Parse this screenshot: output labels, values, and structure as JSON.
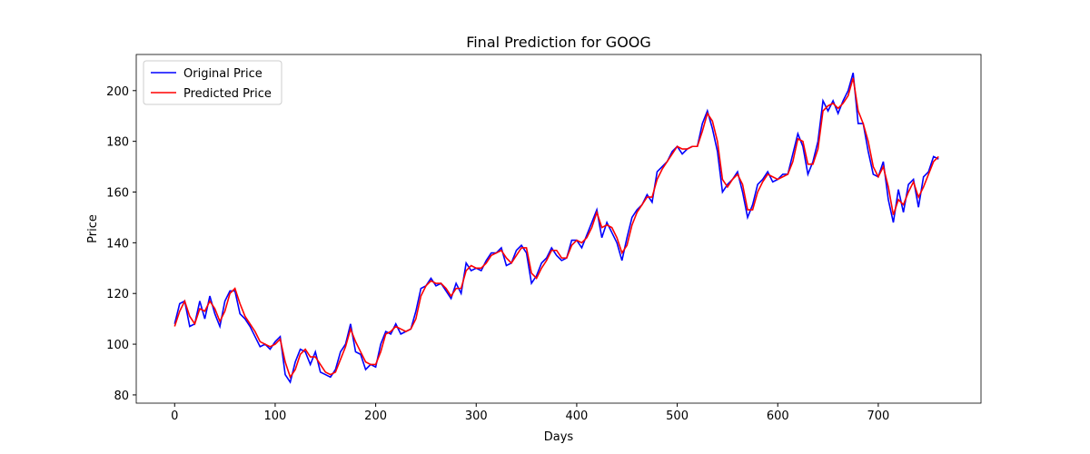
{
  "chart_data": {
    "type": "line",
    "title": "Final Prediction for GOOG",
    "x_label": "Days",
    "y_label": "Price",
    "x": [
      0,
      5,
      10,
      15,
      20,
      25,
      30,
      35,
      40,
      45,
      50,
      55,
      60,
      65,
      70,
      75,
      80,
      85,
      90,
      95,
      100,
      105,
      110,
      115,
      120,
      125,
      130,
      135,
      140,
      145,
      150,
      155,
      160,
      165,
      170,
      175,
      180,
      185,
      190,
      195,
      200,
      205,
      210,
      215,
      220,
      225,
      230,
      235,
      240,
      245,
      250,
      255,
      260,
      265,
      270,
      275,
      280,
      285,
      290,
      295,
      300,
      305,
      310,
      315,
      320,
      325,
      330,
      335,
      340,
      345,
      350,
      355,
      360,
      365,
      370,
      375,
      380,
      385,
      390,
      395,
      400,
      405,
      410,
      415,
      420,
      425,
      430,
      435,
      440,
      445,
      450,
      455,
      460,
      465,
      470,
      475,
      480,
      485,
      490,
      495,
      500,
      505,
      510,
      515,
      520,
      525,
      530,
      535,
      540,
      545,
      550,
      555,
      560,
      565,
      570,
      575,
      580,
      585,
      590,
      595,
      600,
      605,
      610,
      615,
      620,
      625,
      630,
      635,
      640,
      645,
      650,
      655,
      660,
      665,
      670,
      675,
      680,
      685,
      690,
      695,
      700,
      705,
      710,
      715,
      720,
      725,
      730,
      735,
      740,
      745,
      750,
      755,
      760
    ],
    "series": [
      {
        "name": "Original Price",
        "color": "#0000ff",
        "values": [
          108,
          116,
          117,
          107,
          108,
          117,
          110,
          119,
          112,
          107,
          117,
          121,
          121,
          112,
          110,
          107,
          103,
          99,
          100,
          98,
          101,
          103,
          88,
          85,
          93,
          98,
          97,
          92,
          97,
          89,
          88,
          87,
          90,
          97,
          100,
          108,
          97,
          96,
          90,
          92,
          91,
          100,
          105,
          104,
          108,
          104,
          105,
          106,
          113,
          122,
          123,
          126,
          123,
          124,
          121,
          118,
          124,
          120,
          132,
          129,
          130,
          129,
          133,
          136,
          136,
          138,
          131,
          132,
          137,
          139,
          136,
          124,
          127,
          132,
          134,
          138,
          135,
          133,
          134,
          141,
          141,
          138,
          143,
          148,
          153,
          142,
          148,
          144,
          140,
          133,
          142,
          150,
          153,
          155,
          159,
          156,
          168,
          170,
          172,
          176,
          178,
          175,
          177,
          178,
          178,
          187,
          192,
          185,
          176,
          160,
          163,
          165,
          168,
          160,
          150,
          155,
          163,
          165,
          168,
          164,
          165,
          167,
          167,
          175,
          183,
          178,
          167,
          172,
          180,
          196,
          192,
          196,
          191,
          196,
          200,
          207,
          187,
          187,
          176,
          167,
          166,
          172,
          157,
          148,
          161,
          152,
          163,
          165,
          154,
          166,
          168,
          174,
          173
        ]
      },
      {
        "name": "Predicted Price",
        "color": "#ff0000",
        "values": [
          107,
          113,
          117,
          111,
          108,
          114,
          113,
          117,
          114,
          109,
          113,
          120,
          122,
          116,
          111,
          108,
          105,
          101,
          100,
          99,
          100,
          102,
          93,
          87,
          90,
          96,
          98,
          95,
          95,
          92,
          89,
          88,
          89,
          94,
          99,
          106,
          101,
          97,
          93,
          92,
          92,
          97,
          104,
          105,
          107,
          106,
          105,
          106,
          110,
          119,
          123,
          125,
          124,
          124,
          122,
          119,
          122,
          122,
          129,
          131,
          130,
          130,
          132,
          135,
          136,
          137,
          134,
          132,
          135,
          138,
          138,
          128,
          126,
          130,
          133,
          137,
          137,
          134,
          134,
          139,
          141,
          140,
          142,
          146,
          152,
          146,
          147,
          146,
          142,
          136,
          139,
          147,
          152,
          155,
          158,
          158,
          165,
          169,
          172,
          175,
          178,
          177,
          177,
          178,
          178,
          184,
          191,
          188,
          180,
          165,
          162,
          165,
          167,
          163,
          153,
          153,
          160,
          164,
          167,
          166,
          165,
          166,
          167,
          172,
          181,
          180,
          171,
          171,
          177,
          192,
          194,
          195,
          193,
          195,
          198,
          205,
          192,
          187,
          180,
          170,
          166,
          170,
          162,
          151,
          157,
          155,
          160,
          164,
          158,
          162,
          167,
          172,
          174
        ]
      }
    ],
    "xlim": [
      -38.2,
      802.2
    ],
    "ylim": [
      76.75,
      214.25
    ],
    "xticks": [
      0,
      100,
      200,
      300,
      400,
      500,
      600,
      700
    ],
    "yticks": [
      80,
      100,
      120,
      140,
      160,
      180,
      200
    ],
    "legend": "upper left"
  }
}
